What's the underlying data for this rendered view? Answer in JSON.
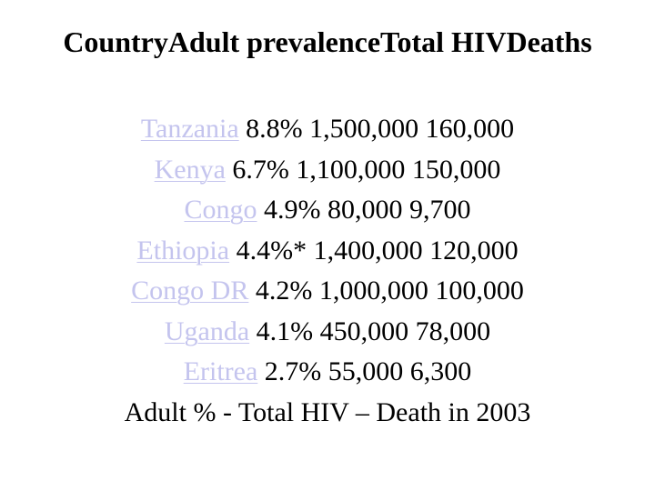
{
  "title": "CountryAdult prevalenceTotal HIVDeaths",
  "link_color": "#c4c4ee",
  "rows": [
    {
      "country": "Tanzania",
      "values": "8.8% 1,500,000 160,000"
    },
    {
      "country": "Kenya",
      "values": "6.7% 1,100,000 150,000"
    },
    {
      "country": "Congo",
      "values": "4.9% 80,000 9,700"
    },
    {
      "country": "Ethiopia",
      "values": "4.4%* 1,400,000 120,000"
    },
    {
      "country": "Congo DR",
      "values": "4.2% 1,000,000 100,000"
    },
    {
      "country": "Uganda",
      "values": "4.1% 450,000 78,000"
    },
    {
      "country": "Eritrea",
      "values": "2.7% 55,000 6,300"
    }
  ],
  "footer": "Adult % - Total HIV – Death in 2003"
}
